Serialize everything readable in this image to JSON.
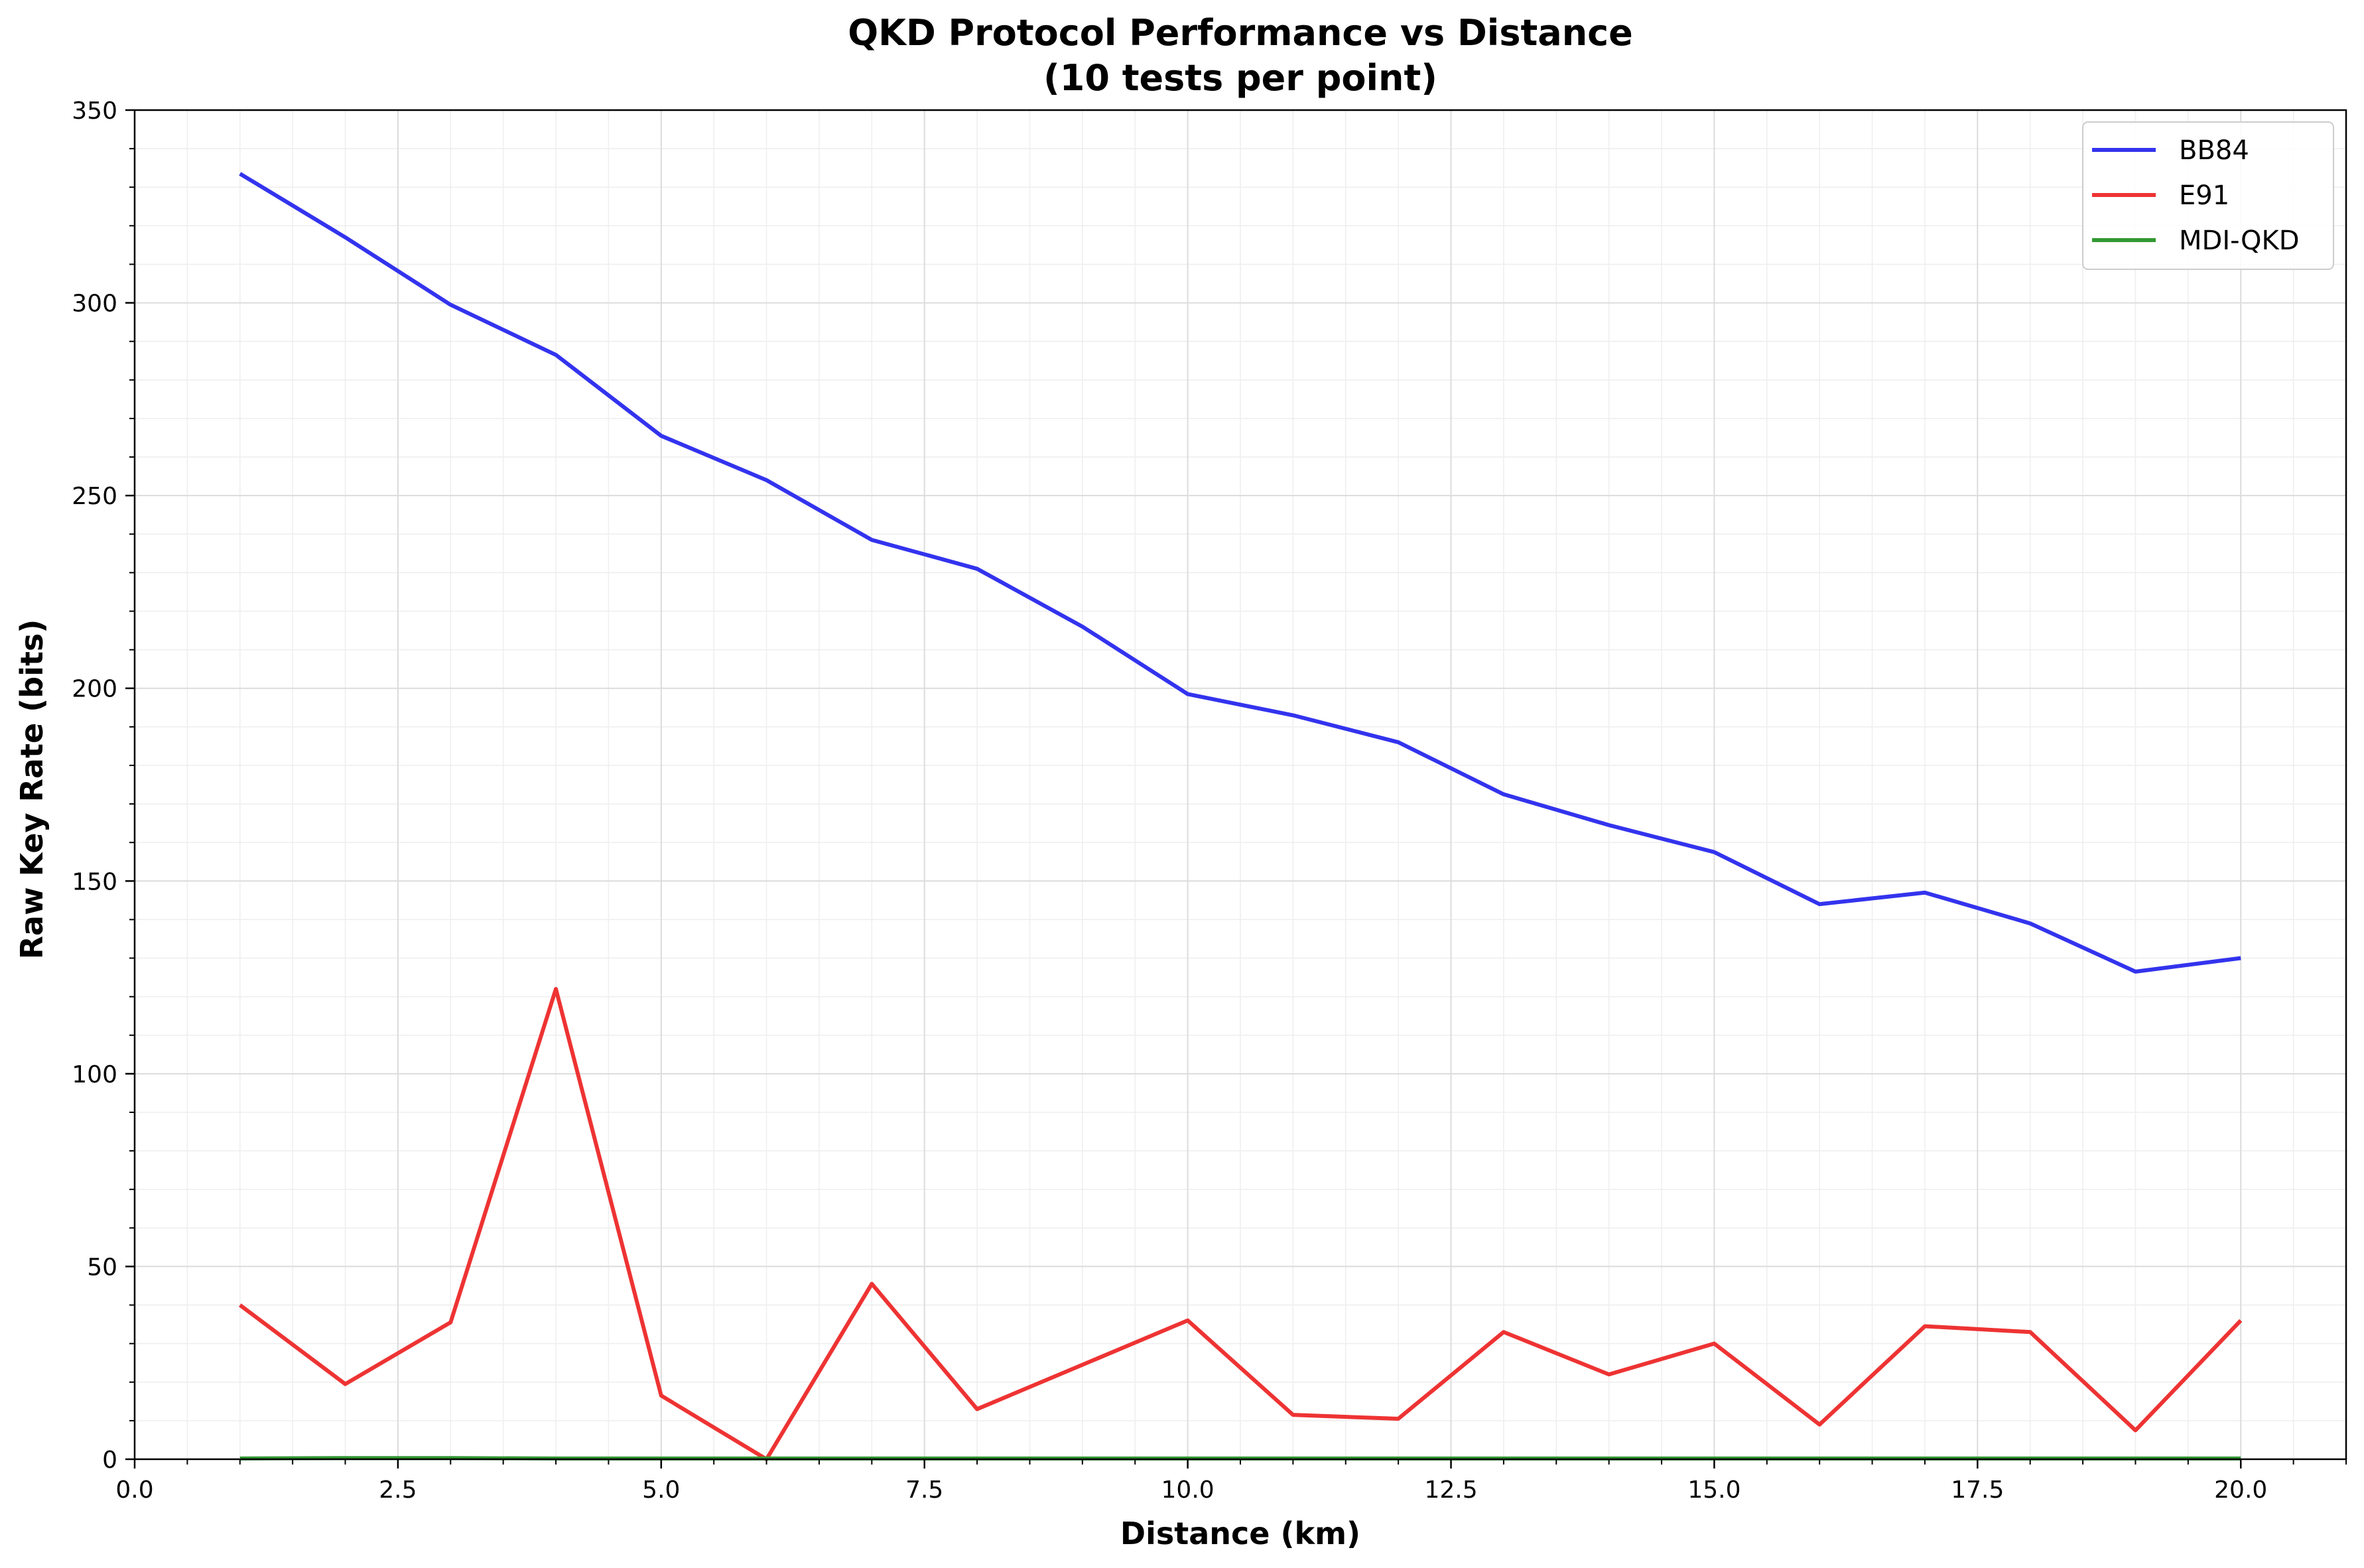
{
  "chart_data": {
    "type": "line",
    "title": "QKD Protocol Performance vs Distance",
    "subtitle": "(10 tests per point)",
    "xlabel": "Distance (km)",
    "ylabel": "Raw Key Rate (bits)",
    "xlim": [
      0,
      21
    ],
    "ylim": [
      0,
      350
    ],
    "xticks": [
      0,
      2.5,
      5,
      7.5,
      10,
      12.5,
      15,
      17.5,
      20
    ],
    "xtick_labels": [
      "0.0",
      "2.5",
      "5.0",
      "7.5",
      "10.0",
      "12.5",
      "15.0",
      "17.5",
      "20.0"
    ],
    "yticks": [
      0,
      50,
      100,
      150,
      200,
      250,
      300,
      350
    ],
    "ytick_labels": [
      "0",
      "50",
      "100",
      "150",
      "200",
      "250",
      "300",
      "350"
    ],
    "grid": true,
    "legend_position": "top-right",
    "x": [
      1,
      2,
      3,
      4,
      5,
      6,
      7,
      8,
      9,
      10,
      11,
      12,
      13,
      14,
      15,
      16,
      17,
      18,
      19,
      20
    ],
    "series": [
      {
        "name": "BB84",
        "color": "#3333ee",
        "values": [
          333.5,
          317,
          299.5,
          286.5,
          265.5,
          254,
          238.5,
          231,
          216,
          198.5,
          193,
          186,
          172.5,
          164.5,
          157.5,
          144,
          147,
          139,
          126.5,
          130
        ]
      },
      {
        "name": "E91",
        "color": "#ee3333",
        "values": [
          40,
          19.5,
          35.5,
          122,
          16.5,
          0,
          45.5,
          13,
          24.5,
          36,
          11.5,
          10.5,
          33,
          22,
          30,
          9,
          34.5,
          33,
          7.5,
          36
        ]
      },
      {
        "name": "MDI-QKD",
        "color": "#339933",
        "values": [
          0.2,
          0.3,
          0.3,
          0.2,
          0.2,
          0.2,
          0.2,
          0.2,
          0.2,
          0.2,
          0.2,
          0.2,
          0.2,
          0.2,
          0.2,
          0.2,
          0.2,
          0.2,
          0.2,
          0.2
        ]
      }
    ]
  }
}
